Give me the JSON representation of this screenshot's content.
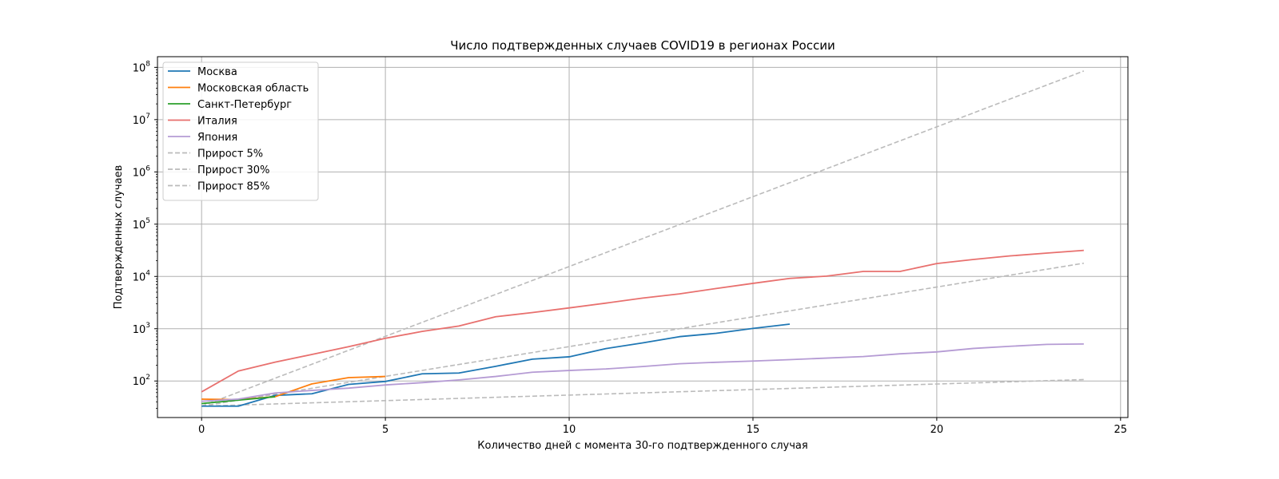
{
  "chart_data": {
    "type": "line",
    "title": "Число подтвержденных случаев COVID19 в регионах России",
    "xlabel": "Количество дней с момента 30-го подтвержденного случая",
    "ylabel": "Подтвержденных случаев",
    "xlim": [
      -1.2,
      25.2
    ],
    "ylim": [
      20,
      160000000
    ],
    "yscale": "log",
    "grid": true,
    "legend_position": "top-left",
    "x_ticks": [
      0,
      5,
      10,
      15,
      20,
      25
    ],
    "x_tick_labels": [
      "0",
      "5",
      "10",
      "15",
      "20",
      "25"
    ],
    "y_ticks": [
      100,
      1000,
      10000,
      100000,
      1000000,
      10000000,
      100000000
    ],
    "y_tick_labels": [
      {
        "base": "10",
        "exp": "2"
      },
      {
        "base": "10",
        "exp": "3"
      },
      {
        "base": "10",
        "exp": "4"
      },
      {
        "base": "10",
        "exp": "5"
      },
      {
        "base": "10",
        "exp": "6"
      },
      {
        "base": "10",
        "exp": "7"
      },
      {
        "base": "10",
        "exp": "8"
      }
    ],
    "series": [
      {
        "name": "Москва",
        "color": "#1f77b4",
        "style": "solid",
        "x": [
          0,
          1,
          2,
          3,
          4,
          5,
          6,
          7,
          8,
          9,
          10,
          11,
          12,
          13,
          14,
          15,
          16
        ],
        "y": [
          33,
          33,
          53,
          57,
          86,
          98,
          137,
          142,
          191,
          262,
          290,
          417,
          536,
          705,
          817,
          1014,
          1226
        ]
      },
      {
        "name": "Московская область",
        "color": "#ff7f0e",
        "style": "solid",
        "x": [
          0,
          1,
          2,
          3,
          4,
          5
        ],
        "y": [
          45,
          44,
          50,
          88,
          116,
          122
        ]
      },
      {
        "name": "Санкт-Петербург",
        "color": "#2ca02c",
        "style": "solid",
        "x": [
          0,
          1,
          2
        ],
        "y": [
          37,
          43,
          50
        ]
      },
      {
        "name": "Италия",
        "color": "#e8706e",
        "style": "solid",
        "x": [
          0,
          1,
          2,
          3,
          4,
          5,
          6,
          7,
          8,
          9,
          10,
          11,
          12,
          13,
          14,
          15,
          16,
          17,
          18,
          19,
          20,
          21,
          22,
          23,
          24
        ],
        "y": [
          62,
          155,
          229,
          322,
          453,
          655,
          888,
          1128,
          1694,
          2036,
          2502,
          3089,
          3858,
          4636,
          5883,
          7375,
          9172,
          10149,
          12462,
          12462,
          17660,
          21157,
          24747,
          27980,
          31506
        ]
      },
      {
        "name": "Япония",
        "color": "#b59bd4",
        "style": "solid",
        "x": [
          0,
          1,
          2,
          3,
          4,
          5,
          6,
          7,
          8,
          9,
          10,
          11,
          12,
          13,
          14,
          15,
          16,
          17,
          18,
          19,
          20,
          21,
          22,
          23,
          24
        ],
        "y": [
          41,
          45,
          59,
          66,
          73,
          84,
          93,
          105,
          122,
          147,
          159,
          170,
          189,
          214,
          228,
          241,
          256,
          274,
          293,
          331,
          360,
          420,
          461,
          502,
          511
        ]
      },
      {
        "name": "Прирост 5%",
        "color": "#bbbbbb",
        "style": "dashed",
        "x": [
          0,
          24
        ],
        "y": [
          33,
          106.7
        ],
        "growth": 1.05
      },
      {
        "name": "Прирост 30%",
        "color": "#bbbbbb",
        "style": "dashed",
        "x": [
          0,
          24
        ],
        "y": [
          33,
          17458
        ],
        "growth": 1.3
      },
      {
        "name": "Прирост 85%",
        "color": "#bbbbbb",
        "style": "dashed",
        "x": [
          0,
          24
        ],
        "y": [
          33,
          83700000
        ],
        "growth": 1.85
      }
    ]
  }
}
